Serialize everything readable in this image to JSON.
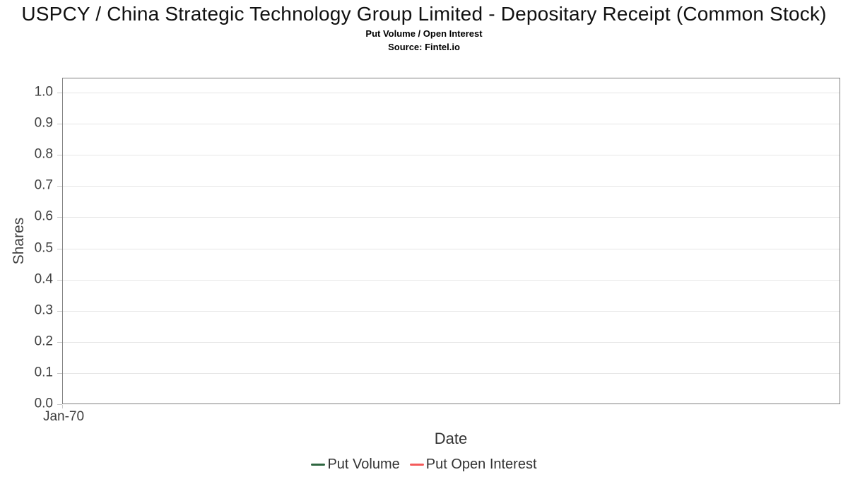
{
  "chart_data": {
    "type": "line",
    "title": "USPCY / China Strategic Technology Group Limited - Depositary Receipt (Common Stock)",
    "subtitle": "Put Volume / Open Interest",
    "source": "Source: Fintel.io",
    "xlabel": "Date",
    "ylabel": "Shares",
    "ylim": [
      0.0,
      1.0
    ],
    "yticks": [
      0.0,
      0.1,
      0.2,
      0.3,
      0.4,
      0.5,
      0.6,
      0.7,
      0.8,
      0.9,
      1.0
    ],
    "ytick_labels": [
      "0.0",
      "0.1",
      "0.2",
      "0.3",
      "0.4",
      "0.5",
      "0.6",
      "0.7",
      "0.8",
      "0.9",
      "1.0"
    ],
    "xtick_labels": [
      "Jan-70"
    ],
    "x": [],
    "series": [
      {
        "name": "Put Volume",
        "color": "#2e6640",
        "values": []
      },
      {
        "name": "Put Open Interest",
        "color": "#f45b5b",
        "values": []
      }
    ],
    "grid": true,
    "legend_position": "bottom"
  },
  "colors": {
    "plot_border": "#808080",
    "gridline": "#e6e6e6",
    "tick_mark": "#c8c8c8",
    "axis_text": "#404040",
    "title_text": "#111111"
  }
}
